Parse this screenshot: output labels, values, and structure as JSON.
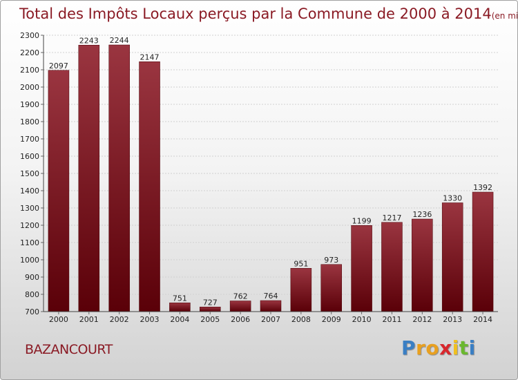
{
  "chart_data": {
    "type": "bar",
    "title": "Total des Impôts Locaux perçus par la Commune de 2000 à 2014",
    "subtitle": "(en milliers d'€)",
    "categories": [
      "2000",
      "2001",
      "2002",
      "2003",
      "2004",
      "2005",
      "2006",
      "2007",
      "2008",
      "2009",
      "2010",
      "2011",
      "2012",
      "2013",
      "2014"
    ],
    "values": [
      2097,
      2243,
      2244,
      2147,
      751,
      727,
      762,
      764,
      951,
      973,
      1199,
      1217,
      1236,
      1330,
      1392
    ],
    "ylim": [
      700,
      2300
    ],
    "yticks": [
      700,
      800,
      900,
      1000,
      1100,
      1200,
      1300,
      1400,
      1500,
      1600,
      1700,
      1800,
      1900,
      2000,
      2100,
      2200,
      2300
    ],
    "grid": true,
    "bar_color": "#7a1420"
  },
  "footer": {
    "commune": "BAZANCOURT",
    "logo_letters": [
      {
        "char": "P",
        "color": "#3a7fc4"
      },
      {
        "char": "r",
        "color": "#e8a020"
      },
      {
        "char": "o",
        "color": "#e8a020"
      },
      {
        "char": "x",
        "color": "#d8272d"
      },
      {
        "char": "i",
        "color": "#f0c020"
      },
      {
        "char": "t",
        "color": "#6ab82e"
      },
      {
        "char": "i",
        "color": "#3a7fc4"
      }
    ]
  }
}
